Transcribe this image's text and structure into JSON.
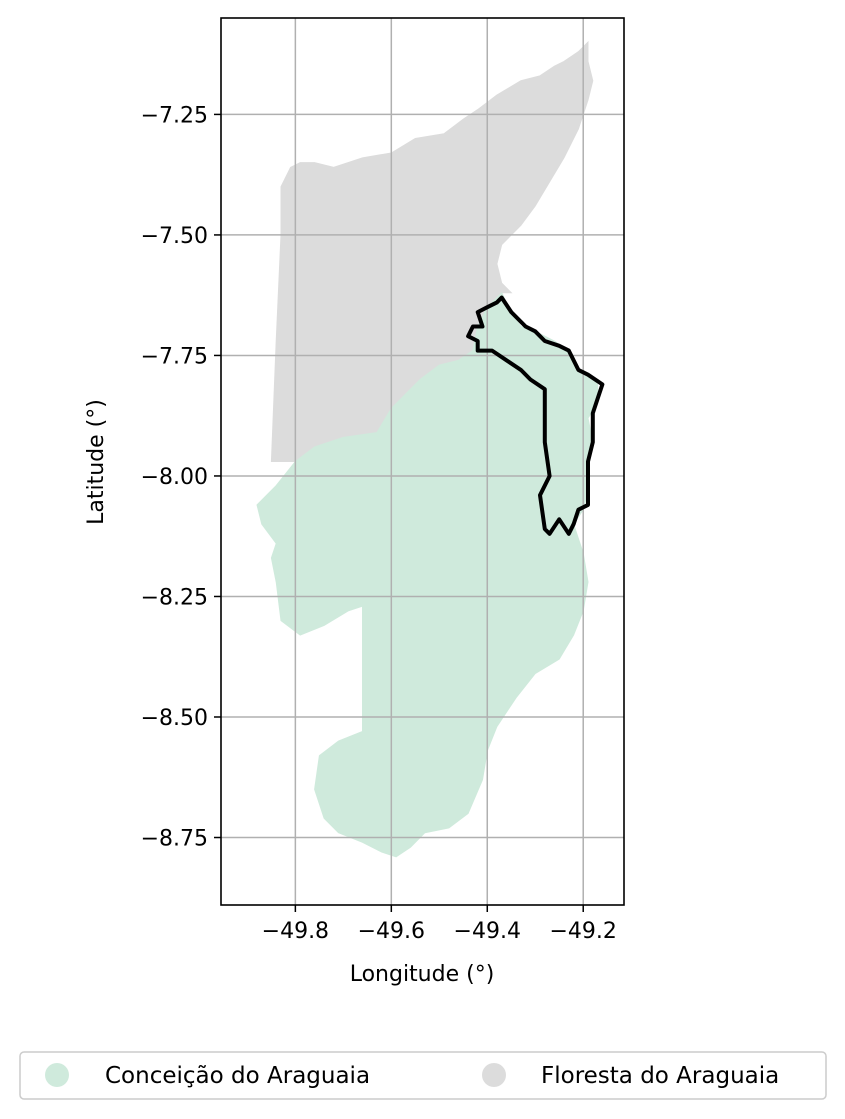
{
  "chart_data": {
    "type": "map",
    "xlabel": "Longitude (°)",
    "ylabel": "Latitude (°)",
    "xlim": [
      -49.955,
      -49.115
    ],
    "ylim": [
      -8.89,
      -7.05
    ],
    "xticks": [
      -49.8,
      -49.6,
      -49.4,
      -49.2
    ],
    "xtick_labels": [
      "−49.8",
      "−49.6",
      "−49.4",
      "−49.2"
    ],
    "yticks": [
      -7.25,
      -7.5,
      -7.75,
      -8.0,
      -8.25,
      -8.5,
      -8.75
    ],
    "ytick_labels": [
      "−7.25",
      "−7.50",
      "−7.75",
      "−8.00",
      "−8.25",
      "−8.50",
      "−8.75"
    ],
    "grid": true,
    "legend_placement": "bottom-center",
    "regions": [
      {
        "name": "Conceição do Araguaia",
        "color": "#cfeadc",
        "outline": [
          [
            -49.39,
            -7.64
          ],
          [
            -49.37,
            -7.62
          ],
          [
            -49.35,
            -7.66
          ],
          [
            -49.33,
            -7.69
          ],
          [
            -49.3,
            -7.7
          ],
          [
            -49.26,
            -7.72
          ],
          [
            -49.23,
            -7.74
          ],
          [
            -49.21,
            -7.78
          ],
          [
            -49.19,
            -7.79
          ],
          [
            -49.17,
            -7.81
          ],
          [
            -49.17,
            -7.85
          ],
          [
            -49.19,
            -7.88
          ],
          [
            -49.18,
            -7.93
          ],
          [
            -49.19,
            -7.97
          ],
          [
            -49.19,
            -8.03
          ],
          [
            -49.2,
            -8.07
          ],
          [
            -49.22,
            -8.1
          ],
          [
            -49.2,
            -8.16
          ],
          [
            -49.19,
            -8.22
          ],
          [
            -49.2,
            -8.28
          ],
          [
            -49.22,
            -8.33
          ],
          [
            -49.25,
            -8.38
          ],
          [
            -49.3,
            -8.41
          ],
          [
            -49.34,
            -8.46
          ],
          [
            -49.38,
            -8.52
          ],
          [
            -49.4,
            -8.57
          ],
          [
            -49.41,
            -8.63
          ],
          [
            -49.44,
            -8.7
          ],
          [
            -49.48,
            -8.73
          ],
          [
            -49.53,
            -8.74
          ],
          [
            -49.56,
            -8.77
          ],
          [
            -49.59,
            -8.79
          ],
          [
            -49.62,
            -8.78
          ],
          [
            -49.66,
            -8.76
          ],
          [
            -49.71,
            -8.74
          ],
          [
            -49.74,
            -8.71
          ],
          [
            -49.76,
            -8.65
          ],
          [
            -49.75,
            -8.58
          ],
          [
            -49.71,
            -8.55
          ],
          [
            -49.66,
            -8.53
          ],
          [
            -49.66,
            -8.5
          ],
          [
            -49.66,
            -8.27
          ],
          [
            -49.69,
            -8.28
          ],
          [
            -49.74,
            -8.31
          ],
          [
            -49.79,
            -8.33
          ],
          [
            -49.83,
            -8.3
          ],
          [
            -49.84,
            -8.22
          ],
          [
            -49.85,
            -8.17
          ],
          [
            -49.84,
            -8.14
          ],
          [
            -49.87,
            -8.1
          ],
          [
            -49.88,
            -8.06
          ],
          [
            -49.84,
            -8.02
          ],
          [
            -49.8,
            -7.97
          ],
          [
            -49.76,
            -7.94
          ],
          [
            -49.7,
            -7.92
          ],
          [
            -49.63,
            -7.91
          ],
          [
            -49.6,
            -7.86
          ],
          [
            -49.57,
            -7.83
          ],
          [
            -49.54,
            -7.8
          ],
          [
            -49.5,
            -7.77
          ],
          [
            -49.46,
            -7.76
          ],
          [
            -49.43,
            -7.74
          ],
          [
            -49.42,
            -7.69
          ],
          [
            -49.4,
            -7.65
          ]
        ],
        "highlight_outline": [
          [
            -49.38,
            -7.64
          ],
          [
            -49.37,
            -7.63
          ],
          [
            -49.35,
            -7.66
          ],
          [
            -49.32,
            -7.69
          ],
          [
            -49.3,
            -7.7
          ],
          [
            -49.28,
            -7.72
          ],
          [
            -49.25,
            -7.73
          ],
          [
            -49.23,
            -7.74
          ],
          [
            -49.21,
            -7.78
          ],
          [
            -49.19,
            -7.79
          ],
          [
            -49.16,
            -7.81
          ],
          [
            -49.17,
            -7.84
          ],
          [
            -49.18,
            -7.87
          ],
          [
            -49.18,
            -7.93
          ],
          [
            -49.19,
            -7.97
          ],
          [
            -49.19,
            -8.01
          ],
          [
            -49.19,
            -8.06
          ],
          [
            -49.21,
            -8.07
          ],
          [
            -49.22,
            -8.1
          ],
          [
            -49.23,
            -8.12
          ],
          [
            -49.25,
            -8.09
          ],
          [
            -49.27,
            -8.12
          ],
          [
            -49.28,
            -8.11
          ],
          [
            -49.29,
            -8.04
          ],
          [
            -49.27,
            -8.0
          ],
          [
            -49.28,
            -7.93
          ],
          [
            -49.28,
            -7.82
          ],
          [
            -49.31,
            -7.8
          ],
          [
            -49.33,
            -7.78
          ],
          [
            -49.36,
            -7.76
          ],
          [
            -49.39,
            -7.74
          ],
          [
            -49.42,
            -7.74
          ],
          [
            -49.42,
            -7.72
          ],
          [
            -49.44,
            -7.71
          ],
          [
            -49.43,
            -7.69
          ],
          [
            -49.41,
            -7.69
          ],
          [
            -49.42,
            -7.66
          ],
          [
            -49.4,
            -7.65
          ]
        ]
      },
      {
        "name": "Floresta do Araguaia",
        "color": "#dcdcdc",
        "outline": [
          [
            -49.19,
            -7.1
          ],
          [
            -49.19,
            -7.14
          ],
          [
            -49.18,
            -7.18
          ],
          [
            -49.19,
            -7.22
          ],
          [
            -49.21,
            -7.28
          ],
          [
            -49.24,
            -7.34
          ],
          [
            -49.27,
            -7.39
          ],
          [
            -49.3,
            -7.44
          ],
          [
            -49.33,
            -7.48
          ],
          [
            -49.37,
            -7.52
          ],
          [
            -49.38,
            -7.56
          ],
          [
            -49.37,
            -7.6
          ],
          [
            -49.35,
            -7.62
          ],
          [
            -49.37,
            -7.62
          ],
          [
            -49.39,
            -7.64
          ],
          [
            -49.4,
            -7.65
          ],
          [
            -49.42,
            -7.69
          ],
          [
            -49.43,
            -7.74
          ],
          [
            -49.46,
            -7.76
          ],
          [
            -49.5,
            -7.77
          ],
          [
            -49.54,
            -7.8
          ],
          [
            -49.57,
            -7.83
          ],
          [
            -49.6,
            -7.86
          ],
          [
            -49.63,
            -7.91
          ],
          [
            -49.7,
            -7.92
          ],
          [
            -49.76,
            -7.94
          ],
          [
            -49.8,
            -7.97
          ],
          [
            -49.85,
            -7.97
          ],
          [
            -49.84,
            -7.72
          ],
          [
            -49.83,
            -7.5
          ],
          [
            -49.83,
            -7.4
          ],
          [
            -49.81,
            -7.36
          ],
          [
            -49.79,
            -7.35
          ],
          [
            -49.76,
            -7.35
          ],
          [
            -49.72,
            -7.36
          ],
          [
            -49.66,
            -7.34
          ],
          [
            -49.6,
            -7.33
          ],
          [
            -49.55,
            -7.3
          ],
          [
            -49.49,
            -7.29
          ],
          [
            -49.45,
            -7.26
          ],
          [
            -49.42,
            -7.24
          ],
          [
            -49.38,
            -7.21
          ],
          [
            -49.33,
            -7.18
          ],
          [
            -49.29,
            -7.17
          ],
          [
            -49.26,
            -7.15
          ],
          [
            -49.24,
            -7.14
          ],
          [
            -49.21,
            -7.12
          ]
        ]
      }
    ]
  },
  "legend": {
    "entries": [
      {
        "label": "Conceição do Araguaia",
        "color": "#cfeadc"
      },
      {
        "label": "Floresta do Araguaia",
        "color": "#dcdcdc"
      }
    ]
  }
}
